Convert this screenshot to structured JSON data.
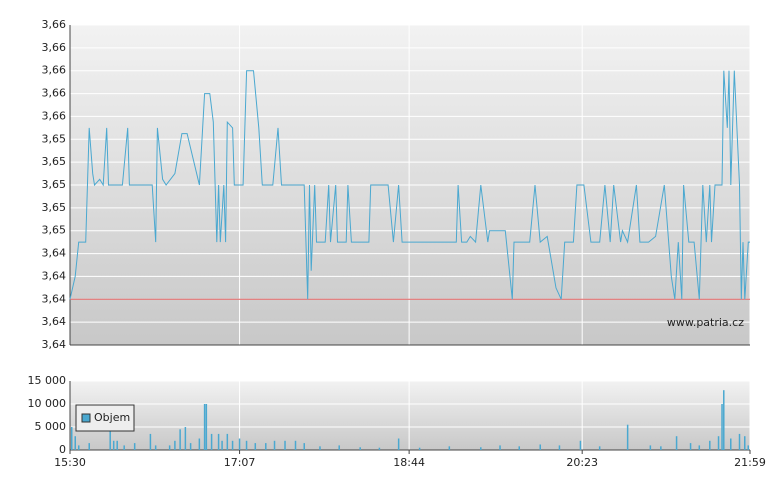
{
  "chart_data": [
    {
      "type": "line",
      "series": [
        {
          "name": null,
          "color": "#4aa8d0",
          "x": [
            930,
            933,
            935,
            939,
            941,
            943,
            944,
            947,
            949,
            951,
            952,
            960,
            963,
            964,
            977,
            979,
            980,
            983,
            985,
            990,
            994,
            997,
            1004,
            1007,
            1010,
            1012,
            1014,
            1015,
            1016,
            1018,
            1019,
            1020,
            1023,
            1024,
            1029,
            1031,
            1035,
            1038,
            1040,
            1046,
            1049,
            1051,
            1064,
            1066,
            1067,
            1068,
            1070,
            1071,
            1076,
            1078,
            1079,
            1082,
            1083,
            1088,
            1089,
            1091,
            1101,
            1102,
            1112,
            1115,
            1118,
            1120,
            1135,
            1151,
            1152,
            1154,
            1157,
            1159,
            1162,
            1165,
            1169,
            1170,
            1179,
            1183,
            1184,
            1193,
            1196,
            1199,
            1203,
            1208,
            1211,
            1213,
            1218,
            1220,
            1224,
            1228,
            1233,
            1236,
            1239,
            1241,
            1245,
            1246,
            1249,
            1254,
            1256,
            1261,
            1265,
            1270,
            1274,
            1276,
            1278,
            1280,
            1281,
            1284,
            1287,
            1290,
            1292,
            1294,
            1296,
            1297,
            1299,
            1303,
            1304,
            1306,
            1307,
            1308,
            1310,
            1313,
            1314,
            1315,
            1316,
            1318,
            1319
          ],
          "values": [
            3.64,
            3.642,
            3.645,
            3.645,
            3.655,
            3.651,
            3.65,
            3.6505,
            3.65,
            3.655,
            3.65,
            3.65,
            3.655,
            3.65,
            3.65,
            3.645,
            3.655,
            3.6505,
            3.65,
            3.651,
            3.6545,
            3.6545,
            3.65,
            3.658,
            3.658,
            3.6555,
            3.645,
            3.65,
            3.645,
            3.65,
            3.645,
            3.6555,
            3.655,
            3.65,
            3.65,
            3.66,
            3.66,
            3.655,
            3.65,
            3.65,
            3.655,
            3.65,
            3.65,
            3.64,
            3.65,
            3.6425,
            3.65,
            3.645,
            3.645,
            3.65,
            3.645,
            3.65,
            3.645,
            3.645,
            3.65,
            3.645,
            3.645,
            3.65,
            3.65,
            3.645,
            3.65,
            3.645,
            3.645,
            3.645,
            3.65,
            3.645,
            3.645,
            3.6455,
            3.645,
            3.65,
            3.645,
            3.646,
            3.646,
            3.64,
            3.645,
            3.645,
            3.65,
            3.645,
            3.6455,
            3.641,
            3.64,
            3.645,
            3.645,
            3.65,
            3.65,
            3.645,
            3.645,
            3.65,
            3.645,
            3.65,
            3.645,
            3.646,
            3.645,
            3.65,
            3.645,
            3.645,
            3.6455,
            3.65,
            3.642,
            3.64,
            3.645,
            3.64,
            3.65,
            3.645,
            3.645,
            3.64,
            3.65,
            3.645,
            3.65,
            3.645,
            3.65,
            3.65,
            3.66,
            3.655,
            3.66,
            3.65,
            3.66,
            3.65,
            3.64,
            3.645,
            3.64,
            3.645,
            3.645
          ]
        }
      ],
      "xlim": [
        930,
        1319
      ],
      "ylim": [
        3.636,
        3.664
      ],
      "yticks": [
        {
          "value": 3.636,
          "label": "3,64"
        },
        {
          "value": 3.638,
          "label": "3,64"
        },
        {
          "value": 3.64,
          "label": "3,64"
        },
        {
          "value": 3.642,
          "label": "3,64"
        },
        {
          "value": 3.644,
          "label": "3,64"
        },
        {
          "value": 3.646,
          "label": "3,65"
        },
        {
          "value": 3.648,
          "label": "3,65"
        },
        {
          "value": 3.65,
          "label": "3,65"
        },
        {
          "value": 3.652,
          "label": "3,65"
        },
        {
          "value": 3.654,
          "label": "3,65"
        },
        {
          "value": 3.656,
          "label": "3,66"
        },
        {
          "value": 3.658,
          "label": "3,66"
        },
        {
          "value": 3.66,
          "label": "3,66"
        },
        {
          "value": 3.662,
          "label": "3,66"
        },
        {
          "value": 3.664,
          "label": "3,66"
        }
      ],
      "reference_line": {
        "value": 3.64,
        "color": "#e06060"
      },
      "watermark": "www.patria.cz",
      "grid": true
    },
    {
      "type": "bar",
      "series": [
        {
          "name": "Objem",
          "color": "#4aa8d0",
          "x": [
            931,
            933,
            935,
            941,
            953,
            955,
            957,
            961,
            967,
            976,
            979,
            987,
            990,
            993,
            996,
            999,
            1004,
            1007,
            1008,
            1011,
            1015,
            1017,
            1020,
            1023,
            1027,
            1031,
            1036,
            1042,
            1047,
            1053,
            1059,
            1064,
            1073,
            1084,
            1096,
            1107,
            1118,
            1130,
            1147,
            1165,
            1176,
            1187,
            1199,
            1210,
            1222,
            1233,
            1249,
            1262,
            1268,
            1277,
            1285,
            1290,
            1296,
            1301,
            1303,
            1304,
            1308,
            1313,
            1316,
            1318
          ],
          "values": [
            5000,
            3000,
            1000,
            1500,
            6000,
            2000,
            2000,
            1000,
            1500,
            3500,
            1000,
            1000,
            2000,
            4500,
            5000,
            1500,
            2500,
            10000,
            10000,
            3500,
            3500,
            2000,
            3500,
            2000,
            2500,
            2000,
            1500,
            1500,
            2000,
            2000,
            2000,
            1500,
            800,
            1000,
            600,
            500,
            2500,
            500,
            800,
            600,
            1000,
            800,
            1200,
            1000,
            2000,
            800,
            5500,
            1000,
            800,
            3000,
            1500,
            1000,
            2000,
            3000,
            10000,
            13000,
            2500,
            3500,
            3000,
            1000
          ]
        }
      ],
      "xlim": [
        930,
        1319
      ],
      "xticks": [
        {
          "value": 930,
          "label": "15:30"
        },
        {
          "value": 1027,
          "label": "17:07"
        },
        {
          "value": 1124,
          "label": "18:44"
        },
        {
          "value": 1223,
          "label": "20:23"
        },
        {
          "value": 1319,
          "label": "21:59"
        }
      ],
      "ylim": [
        0,
        15000
      ],
      "yticks": [
        0,
        {
          "value": 5000,
          "label": "5 000"
        },
        {
          "value": 10000,
          "label": "10 000"
        },
        {
          "value": 15000,
          "label": "15 000"
        }
      ],
      "grid": true
    }
  ]
}
